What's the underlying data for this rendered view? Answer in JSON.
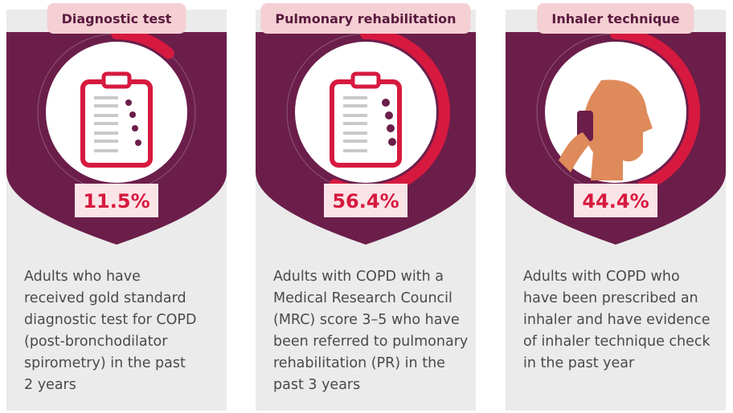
{
  "chart_data": {
    "type": "gauge",
    "categories": [
      "Diagnostic test",
      "Pulmonary rehabilitation",
      "Inhaler technique"
    ],
    "values": [
      11.5,
      56.4,
      44.4
    ],
    "value_labels": [
      "11.5%",
      "56.4%",
      "44.4%"
    ],
    "ylim": [
      0,
      100
    ],
    "color": "#d7193f",
    "descriptions": [
      [
        "Adults who have",
        "received gold standard",
        "diagnostic test for COPD",
        "(post-bronchodilator",
        "spirometry) in the past",
        "2 years"
      ],
      [
        "Adults with COPD with a",
        "Medical Research Council",
        "(MRC) score 3–5 who have",
        "been referred to pulmonary",
        "rehabilitation (PR) in the",
        "past 3 years"
      ],
      [
        "Adults with COPD who",
        "have been prescribed an",
        "inhaler and have evidence",
        "of inhaler technique check",
        "in the past year"
      ]
    ]
  }
}
